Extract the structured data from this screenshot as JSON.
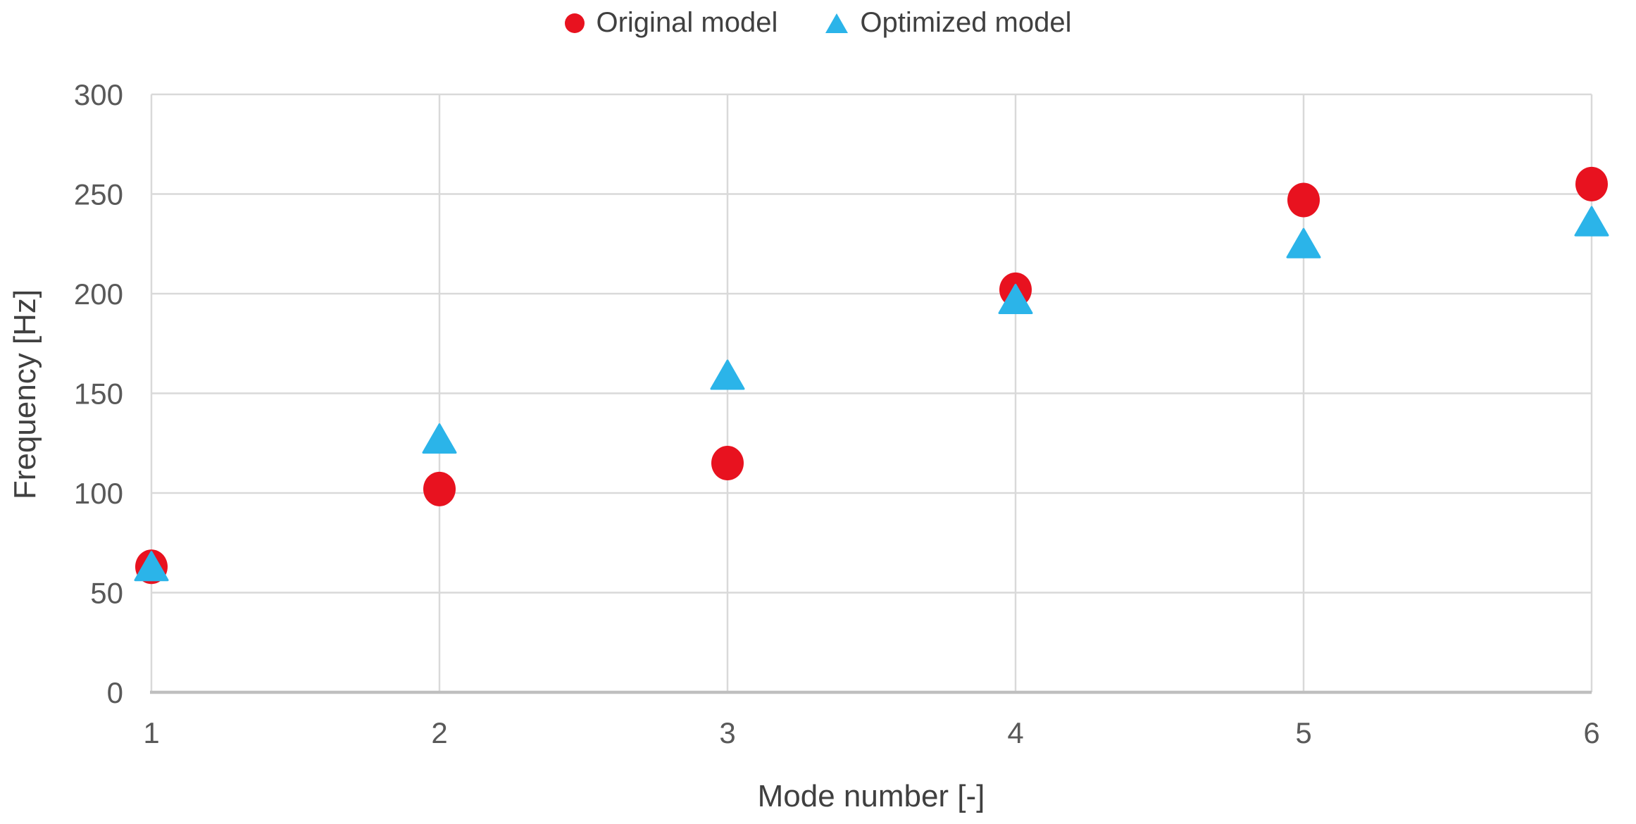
{
  "chart_data": {
    "type": "scatter",
    "x": [
      1,
      2,
      3,
      4,
      5,
      6
    ],
    "series": [
      {
        "name": "Original model",
        "marker": "circle",
        "color": "#e8121f",
        "values": [
          63,
          102,
          115,
          202,
          247,
          255
        ]
      },
      {
        "name": "Optimized model",
        "marker": "triangle",
        "color": "#2bb4e9",
        "values": [
          63,
          127,
          159,
          197,
          225,
          236
        ]
      }
    ],
    "title": "",
    "xlabel": "Mode number [-]",
    "ylabel": "Frequency [Hz]",
    "xlim": [
      1,
      6
    ],
    "ylim": [
      0,
      300
    ],
    "x_ticks": [
      "1",
      "2",
      "3",
      "4",
      "5",
      "6"
    ],
    "y_ticks": [
      0,
      50,
      100,
      150,
      200,
      250,
      300
    ],
    "grid": true,
    "legend_position": "top-center",
    "colors": {
      "gridline": "#d9d9d9",
      "axis_line": "#bfbfbf",
      "tick_text": "#595959",
      "title_text": "#404040",
      "background": "#ffffff"
    }
  }
}
